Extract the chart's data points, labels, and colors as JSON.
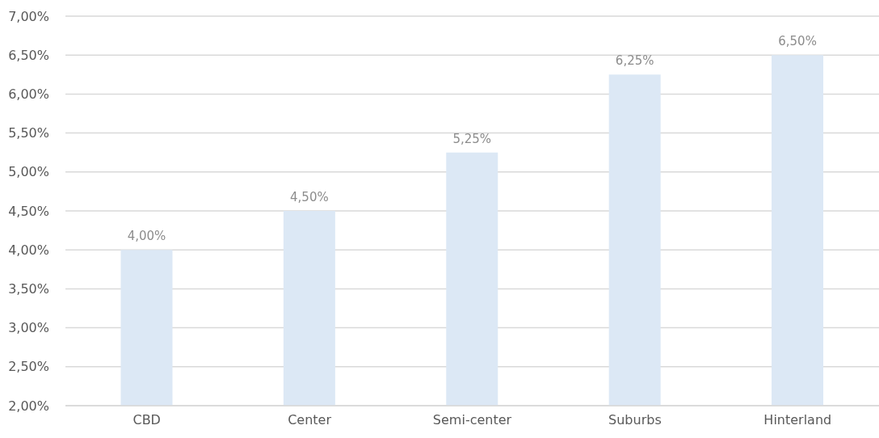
{
  "chart_data": {
    "type": "bar",
    "categories": [
      "CBD",
      "Center",
      "Semi-center",
      "Suburbs",
      "Hinterland"
    ],
    "values": [
      4,
      4.5,
      5.25,
      6.25,
      6.5
    ],
    "value_labels": [
      "4,00%",
      "4,50%",
      "5,25%",
      "6,25%",
      "6,50%"
    ],
    "color": "#dce8f5",
    "ylim": [
      2,
      7
    ],
    "yticks": [
      {
        "value": 2,
        "label": "2,00%"
      },
      {
        "value": 2.5,
        "label": "2,50%"
      },
      {
        "value": 3,
        "label": "3,00%"
      },
      {
        "value": 3.5,
        "label": "3,50%"
      },
      {
        "value": 4,
        "label": "4,00%"
      },
      {
        "value": 4.5,
        "label": "4,50%"
      },
      {
        "value": 5,
        "label": "5,00%"
      },
      {
        "value": 5.5,
        "label": "5,50%"
      },
      {
        "value": 6,
        "label": "6,00%"
      },
      {
        "value": 6.5,
        "label": "6,50%"
      },
      {
        "value": 7,
        "label": "7,00%"
      }
    ],
    "grid": "y"
  }
}
